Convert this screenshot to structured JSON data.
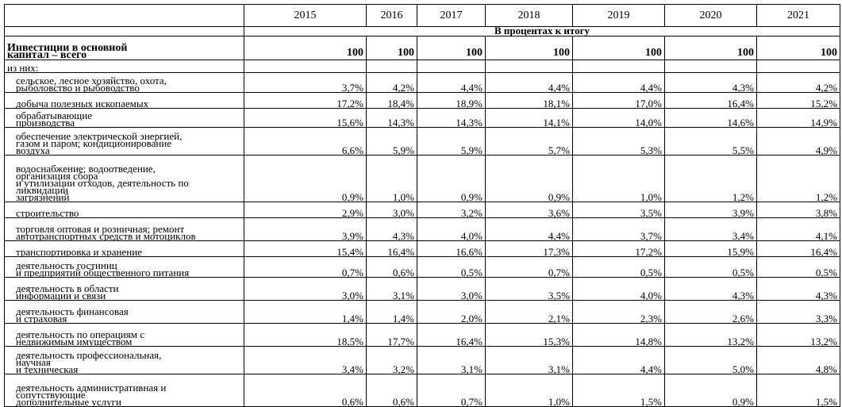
{
  "years": [
    "2015",
    "2016",
    "2017",
    "2018",
    "2019",
    "2020",
    "2021"
  ],
  "unit_label": "В процентах к итогу",
  "total": {
    "label_lines": [
      "Инвестиции в основной",
      "капитал – всего"
    ],
    "values": [
      "100",
      "100",
      "100",
      "100",
      "100",
      "100",
      "100"
    ]
  },
  "subheader": "из них:",
  "rows": [
    {
      "lines": [
        "сельское, лесное хозяйство, охота,",
        "рыболовство и рыбоводство"
      ],
      "values": [
        "3,7%",
        "4,2%",
        "4,4%",
        "4,4%",
        "4,4%",
        "4,3%",
        "4,2%"
      ]
    },
    {
      "lines": [
        "добыча полезных ископаемых"
      ],
      "values": [
        "17,2%",
        "18,4%",
        "18,9%",
        "18,1%",
        "17,0%",
        "16,4%",
        "15,2%"
      ]
    },
    {
      "lines": [
        "обрабатывающие",
        "производства"
      ],
      "values": [
        "15,6%",
        "14,3%",
        "14,3%",
        "14,1%",
        "14,0%",
        "14,6%",
        "14,9%"
      ]
    },
    {
      "lines": [
        "обеспечение электрической энергией,",
        "газом и паром; кондиционирование",
        "воздуха"
      ],
      "values": [
        "6,6%",
        "5,9%",
        "5,9%",
        "5,7%",
        "5,3%",
        "5,5%",
        "4,9%"
      ]
    },
    {
      "lines": [
        "водоснабжение; водоотведение,",
        "организация сбора",
        "и утилизации отходов, деятельность по",
        "ликвидации",
        "загрязнений"
      ],
      "values": [
        "0,9%",
        "1,0%",
        "0,9%",
        "0,9%",
        "1,0%",
        "1,2%",
        "1,2%"
      ]
    },
    {
      "lines": [
        "строительство"
      ],
      "values": [
        "2,9%",
        "3,0%",
        "3,2%",
        "3,6%",
        "3,5%",
        "3,9%",
        "3,8%"
      ]
    },
    {
      "lines": [
        "торговля оптовая и розничная; ремонт",
        "автотранспортных средств и мотоциклов"
      ],
      "values": [
        "3,9%",
        "4,3%",
        "4,0%",
        "4,4%",
        "3,7%",
        "3,4%",
        "4,1%"
      ]
    },
    {
      "lines": [
        "транспортировка и хранение"
      ],
      "values": [
        "15,4%",
        "16,4%",
        "16,6%",
        "17,3%",
        "17,2%",
        "15,9%",
        "16,4%"
      ]
    },
    {
      "lines": [
        "деятельность гостиниц",
        "и предприятий общественного питания"
      ],
      "values": [
        "0,7%",
        "0,6%",
        "0,5%",
        "0,7%",
        "0,5%",
        "0,5%",
        "0,5%"
      ]
    },
    {
      "lines": [
        "деятельность в области",
        "информации и связи"
      ],
      "values": [
        "3,0%",
        "3,1%",
        "3,0%",
        "3,5%",
        "4,0%",
        "4,3%",
        "4,3%"
      ]
    },
    {
      "lines": [
        "деятельность финансовая",
        "и страховая"
      ],
      "values": [
        "1,4%",
        "1,4%",
        "2,0%",
        "2,1%",
        "2,3%",
        "2,6%",
        "3,3%"
      ]
    },
    {
      "lines": [
        "деятельность по операциям с",
        "недвижимым имуществом"
      ],
      "values": [
        "18,5%",
        "17,7%",
        "16,4%",
        "15,3%",
        "14,8%",
        "13,2%",
        "13,2%"
      ]
    },
    {
      "lines": [
        "деятельность профессиональная,",
        "научная",
        "и техническая"
      ],
      "values": [
        "3,4%",
        "3,2%",
        "3,1%",
        "3,1%",
        "4,4%",
        "5,0%",
        "4,8%"
      ]
    },
    {
      "lines": [
        "деятельность административная и",
        "сопутствующие",
        "дополнительные услуги"
      ],
      "values": [
        "0,6%",
        "0,6%",
        "0,7%",
        "1,0%",
        "1,5%",
        "0,9%",
        "1,5%"
      ]
    }
  ]
}
